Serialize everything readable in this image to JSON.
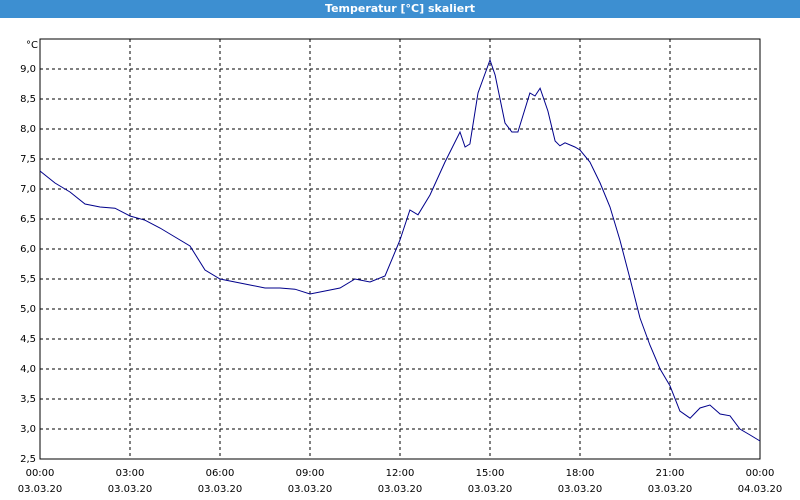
{
  "chart_data": {
    "type": "line",
    "title": "Temperatur [°C] skaliert",
    "unit_label": "°C",
    "x": [
      0,
      0.5,
      1.0,
      1.5,
      2.0,
      2.5,
      3.0,
      3.5,
      4.0,
      4.5,
      5.0,
      5.5,
      6.0,
      6.5,
      7.0,
      7.5,
      8.0,
      8.5,
      9.0,
      9.5,
      10.0,
      10.5,
      11.0,
      11.5,
      12.0,
      12.33,
      12.6,
      13.0,
      13.5,
      14.0,
      14.17,
      14.33,
      14.6,
      15.0,
      15.17,
      15.5,
      15.73,
      15.93,
      16.33,
      16.5,
      16.67,
      16.93,
      17.17,
      17.33,
      17.5,
      17.83,
      18.0,
      18.33,
      18.67,
      19.0,
      19.33,
      19.67,
      20.0,
      20.33,
      20.67,
      21.0,
      21.33,
      21.67,
      22.0,
      22.33,
      22.67,
      23.0,
      23.33,
      23.67,
      24.0
    ],
    "series": [
      {
        "name": "Temperatur",
        "color": "#00008b",
        "values": [
          7.3,
          7.1,
          6.95,
          6.75,
          6.7,
          6.68,
          6.55,
          6.48,
          6.35,
          6.2,
          6.05,
          5.65,
          5.5,
          5.45,
          5.4,
          5.35,
          5.35,
          5.33,
          5.25,
          5.3,
          5.35,
          5.5,
          5.45,
          5.55,
          6.15,
          6.65,
          6.57,
          6.9,
          7.45,
          7.95,
          7.7,
          7.75,
          8.6,
          9.15,
          8.9,
          8.1,
          7.95,
          7.95,
          8.6,
          8.55,
          8.68,
          8.3,
          7.8,
          7.72,
          7.77,
          7.7,
          7.65,
          7.45,
          7.1,
          6.7,
          6.15,
          5.5,
          4.85,
          4.4,
          4.0,
          3.72,
          3.3,
          3.18,
          3.35,
          3.4,
          3.25,
          3.22,
          3.0,
          2.9,
          2.8
        ]
      }
    ],
    "xlim": [
      0,
      24
    ],
    "xticks": [
      {
        "value": 0,
        "label": "00:00"
      },
      {
        "value": 3,
        "label": "03:00"
      },
      {
        "value": 6,
        "label": "06:00"
      },
      {
        "value": 9,
        "label": "09:00"
      },
      {
        "value": 12,
        "label": "12:00"
      },
      {
        "value": 15,
        "label": "15:00"
      },
      {
        "value": 18,
        "label": "18:00"
      },
      {
        "value": 21,
        "label": "21:00"
      },
      {
        "value": 24,
        "label": "00:00"
      }
    ],
    "xtick_dates": [
      "03.03.20",
      "03.03.20",
      "03.03.20",
      "03.03.20",
      "03.03.20",
      "03.03.20",
      "03.03.20",
      "03.03.20",
      "04.03.20"
    ],
    "ylim": [
      2.5,
      9.5
    ],
    "yticks": [
      {
        "value": 2.5,
        "label": "2,5"
      },
      {
        "value": 3.0,
        "label": "3,0"
      },
      {
        "value": 3.5,
        "label": "3,5"
      },
      {
        "value": 4.0,
        "label": "4,0"
      },
      {
        "value": 4.5,
        "label": "4,5"
      },
      {
        "value": 5.0,
        "label": "5,0"
      },
      {
        "value": 5.5,
        "label": "5,5"
      },
      {
        "value": 6.0,
        "label": "6,0"
      },
      {
        "value": 6.5,
        "label": "6,5"
      },
      {
        "value": 7.0,
        "label": "7,0"
      },
      {
        "value": 7.5,
        "label": "7,5"
      },
      {
        "value": 8.0,
        "label": "8,0"
      },
      {
        "value": 8.5,
        "label": "8,5"
      },
      {
        "value": 9.0,
        "label": "9,0"
      }
    ],
    "grid": true
  }
}
